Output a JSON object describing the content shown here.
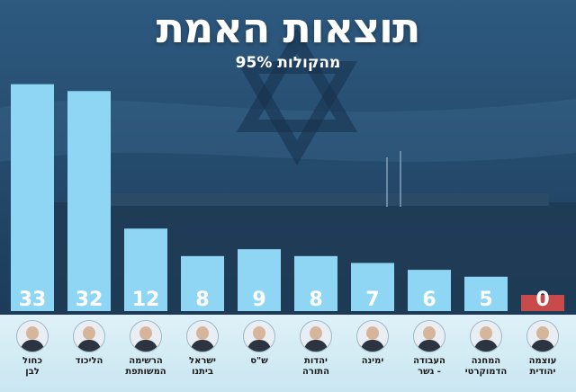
{
  "header": {
    "title": "תוצאות האמת",
    "subtitle": "95% מהקולות"
  },
  "colors": {
    "bar": "#8fd6f4",
    "bar_zero": "#c94a4a",
    "value_text": "#ffffff"
  },
  "chart_data": {
    "type": "bar",
    "title": "תוצאות האמת",
    "subtitle": "95% מהקולות",
    "categories": [
      "כחול לבן",
      "הליכוד",
      "הרשימה המשותפת",
      "ישראל ביתנו",
      "ש\"ס",
      "יהדות התורה",
      "ימינה",
      "העבודה - גשר",
      "המחנה הדמוקרטי",
      "עוצמה יהודית"
    ],
    "values": [
      33,
      32,
      12,
      8,
      9,
      8,
      7,
      6,
      5,
      0
    ],
    "ylim": [
      0,
      34
    ],
    "xlabel": "",
    "ylabel": "",
    "grid": false,
    "legend": "none"
  },
  "parties": [
    {
      "line1": "כחול",
      "line2": "לבן",
      "icon": "avatar-icon"
    },
    {
      "line1": "הליכוד",
      "line2": "",
      "icon": "avatar-icon"
    },
    {
      "line1": "הרשימה",
      "line2": "המשותפת",
      "icon": "avatar-icon"
    },
    {
      "line1": "ישראל",
      "line2": "ביתנו",
      "icon": "avatar-icon"
    },
    {
      "line1": "ש\"ס",
      "line2": "",
      "icon": "avatar-icon"
    },
    {
      "line1": "יהדות",
      "line2": "התורה",
      "icon": "avatar-icon"
    },
    {
      "line1": "ימינה",
      "line2": "",
      "icon": "avatar-icon"
    },
    {
      "line1": "העבודה",
      "line2": "- גשר",
      "icon": "avatar-icon"
    },
    {
      "line1": "המחנה",
      "line2": "הדמוקרטי",
      "icon": "avatar-icon"
    },
    {
      "line1": "עוצמה",
      "line2": "יהודית",
      "icon": "avatar-icon"
    }
  ]
}
